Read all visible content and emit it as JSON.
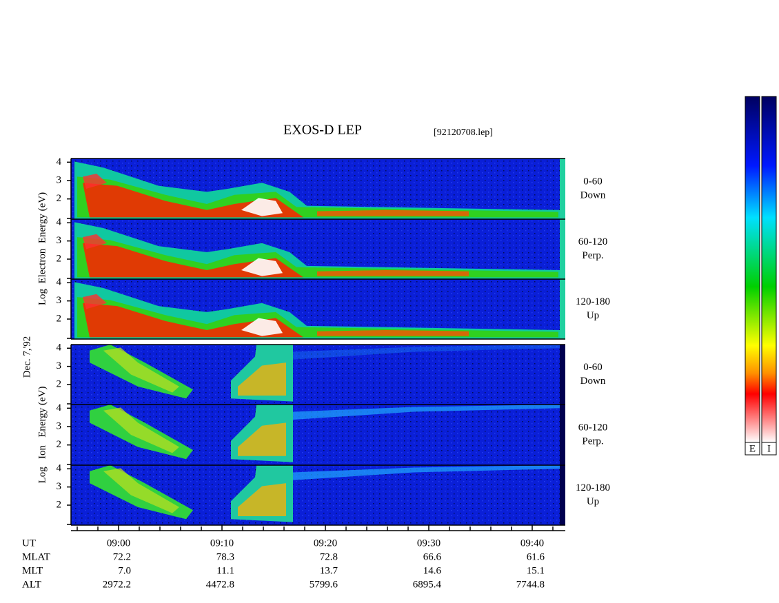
{
  "chart_data": {
    "type": "spectrogram",
    "title": "EXOS-D LEP",
    "subtitle": "[92120708.lep]",
    "date_label": "Dec. 7,'92",
    "groups": [
      {
        "ylabel": "Log  Electron  Energy (eV)",
        "kind": "electron",
        "panels": [
          {
            "label": [
              "0-60",
              "Down"
            ]
          },
          {
            "label": [
              "60-120",
              "Perp."
            ]
          },
          {
            "label": [
              "120-180",
              "Up"
            ]
          }
        ]
      },
      {
        "ylabel": "Log   Ion   Energy (eV)",
        "kind": "ion",
        "panels": [
          {
            "label": [
              "0-60",
              "Down"
            ]
          },
          {
            "label": [
              "60-120",
              "Perp."
            ]
          },
          {
            "label": [
              "120-180",
              "Up"
            ]
          }
        ]
      }
    ],
    "ylim": [
      0.9,
      4.2
    ],
    "yticks": [
      2,
      3,
      4
    ],
    "xlim": [
      535.4,
      583.2
    ],
    "xticks": [
      {
        "value": 540,
        "label": "09:00"
      },
      {
        "value": 550,
        "label": "09:10"
      },
      {
        "value": 560,
        "label": "09:20"
      },
      {
        "value": 570,
        "label": "09:30"
      },
      {
        "value": 580,
        "label": "09:40"
      }
    ],
    "minor_xticks": [
      536,
      538,
      542,
      544,
      546,
      548,
      552,
      554,
      556,
      558,
      562,
      564,
      566,
      568,
      572,
      574,
      576,
      578,
      582
    ],
    "ephemeris": {
      "labels": [
        "UT",
        "MLAT",
        "MLT",
        "ALT"
      ],
      "rows": [
        [
          "72.2",
          "78.3",
          "72.8",
          "66.6",
          "61.6"
        ],
        [
          "7.0",
          "11.1",
          "13.7",
          "14.6",
          "15.1"
        ],
        [
          "2972.2",
          "4472.8",
          "5799.6",
          "6895.4",
          "7744.8"
        ]
      ]
    },
    "colorbars": [
      "E",
      "I"
    ]
  }
}
